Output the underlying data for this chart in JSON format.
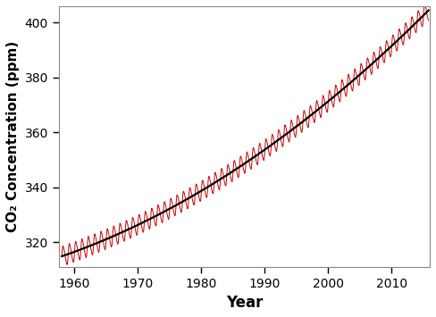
{
  "title": "",
  "xlabel": "Year",
  "ylabel": "CO₂ Concentration (ppm)",
  "xlim": [
    1957.5,
    2016.0
  ],
  "ylim": [
    311,
    406
  ],
  "yticks": [
    320,
    340,
    360,
    380,
    400
  ],
  "xticks": [
    1960,
    1970,
    1980,
    1990,
    2000,
    2010
  ],
  "trend_color": "#000000",
  "seasonal_color": "#cc0000",
  "trend_linewidth": 1.6,
  "seasonal_linewidth": 0.7,
  "year_start": 1958.0,
  "year_end": 2015.8,
  "n_points": 696,
  "trend_a": 314.8,
  "trend_b": 0.8,
  "trend_c": 0.013,
  "seasonal_amplitude": 3.5,
  "seasonal_period": 1.0,
  "background_color": "#ffffff",
  "spine_color": "#888888"
}
